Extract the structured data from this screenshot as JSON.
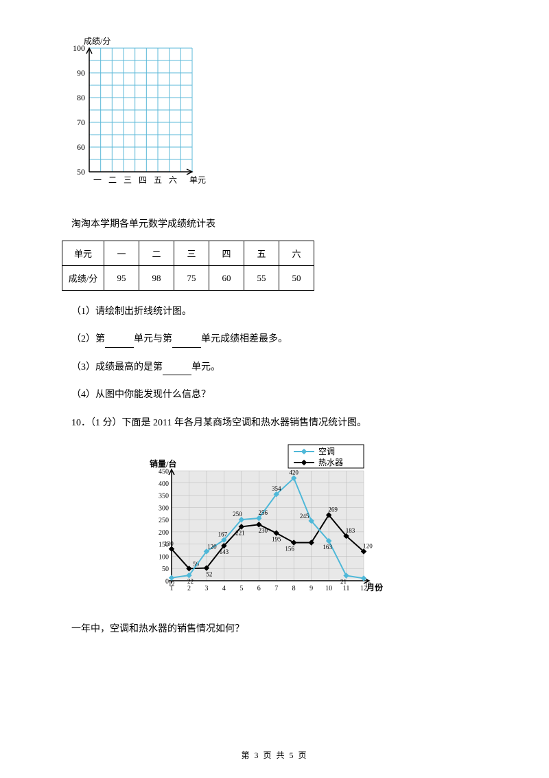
{
  "chart1": {
    "y_label": "成绩/分",
    "x_label": "单元",
    "y_ticks": [
      "100",
      "90",
      "80",
      "70",
      "60",
      "50"
    ],
    "x_ticks": [
      "一",
      "二",
      "三",
      "四",
      "五",
      "六"
    ],
    "grid_color": "#5bb8d8",
    "axis_color": "#000000",
    "text_color": "#000000"
  },
  "table": {
    "title": "淘淘本学期各单元数学成绩统计表",
    "row1_header": "单元",
    "row2_header": "成绩/分",
    "cols": [
      "一",
      "二",
      "三",
      "四",
      "五",
      "六"
    ],
    "vals": [
      "95",
      "98",
      "75",
      "60",
      "55",
      "50"
    ]
  },
  "q1": {
    "text": "（1）请绘制出折线统计图。"
  },
  "q2": {
    "pre": "（2）第",
    "mid": "单元与第",
    "post": "单元成绩相差最多。",
    "blank_w": 42
  },
  "q3": {
    "pre": "（3）成绩最高的是第",
    "post": "单元。",
    "blank_w": 42
  },
  "q4": {
    "text": "（4）从图中你能发现什么信息？"
  },
  "q10": {
    "text": "10．（1 分）下面是 2011 年各月某商场空调和热水器销售情况统计图。"
  },
  "chart2": {
    "y_label": "销量/台",
    "x_label": "月份",
    "y_ticks": [
      "450",
      "400",
      "350",
      "300",
      "250",
      "200",
      "150",
      "100",
      "50",
      "0"
    ],
    "x_ticks": [
      "1",
      "2",
      "3",
      "4",
      "5",
      "6",
      "7",
      "8",
      "9",
      "10",
      "11",
      "12"
    ],
    "legend": {
      "s1": "空调",
      "s2": "热水器"
    },
    "s1_color": "#4fb8d8",
    "s2_color": "#000000",
    "grid_color": "#b8b8b8",
    "bg_color": "#e8e8e8",
    "s1_values": [
      12,
      22,
      120,
      167,
      250,
      256,
      354,
      420,
      245,
      163,
      21,
      10
    ],
    "s2_values": [
      130,
      50,
      52,
      143,
      221,
      230,
      195,
      156,
      156,
      269,
      183,
      120
    ],
    "s1_labels": [
      "12",
      "22",
      "120",
      "167",
      "250",
      "256",
      "354",
      "420",
      "245",
      "163",
      "21",
      "10"
    ],
    "s2_labels": [
      "130",
      "50",
      "52",
      "143",
      "221",
      "230",
      "195",
      "156",
      "",
      "269",
      "183",
      "120"
    ]
  },
  "q_after": {
    "text": "一年中，空调和热水器的销售情况如何？"
  },
  "footer": {
    "text": "第 3 页 共 5 页"
  }
}
